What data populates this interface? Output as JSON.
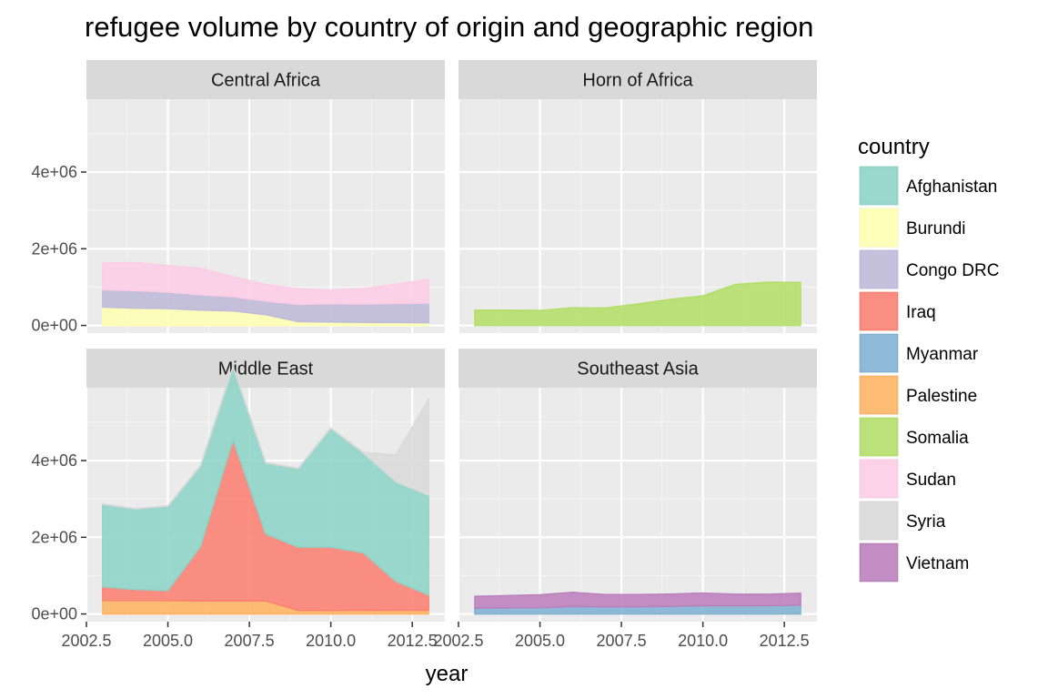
{
  "chart_data": {
    "type": "area",
    "title": "refugee volume by country of origin and geographic region",
    "xlabel": "year",
    "ylabel": "",
    "xlim": [
      2002.5,
      2013.5
    ],
    "ylim": [
      -200000,
      5900000
    ],
    "x_ticks": [
      {
        "value": 2002.5,
        "label": "2002.5"
      },
      {
        "value": 2005.0,
        "label": "2005.0"
      },
      {
        "value": 2007.5,
        "label": "2007.5"
      },
      {
        "value": 2010.0,
        "label": "2010.0"
      },
      {
        "value": 2012.5,
        "label": "2012.5"
      }
    ],
    "y_ticks": [
      {
        "value": 0,
        "label": "0e+00"
      },
      {
        "value": 2000000,
        "label": "2e+06"
      },
      {
        "value": 4000000,
        "label": "4e+06"
      }
    ],
    "legend": {
      "title": "country",
      "position": "right"
    },
    "countries": [
      {
        "name": "Afghanistan",
        "color": "#8dd3c7"
      },
      {
        "name": "Burundi",
        "color": "#ffffb3"
      },
      {
        "name": "Congo DRC",
        "color": "#bebada"
      },
      {
        "name": "Iraq",
        "color": "#fb8072"
      },
      {
        "name": "Myanmar",
        "color": "#80b1d3"
      },
      {
        "name": "Palestine",
        "color": "#fdb462"
      },
      {
        "name": "Somalia",
        "color": "#b3de69"
      },
      {
        "name": "Sudan",
        "color": "#fccde5"
      },
      {
        "name": "Syria",
        "color": "#d9d9d9"
      },
      {
        "name": "Vietnam",
        "color": "#bc80bd"
      }
    ],
    "years": [
      2003,
      2004,
      2005,
      2006,
      2007,
      2008,
      2009,
      2010,
      2011,
      2012,
      2013
    ],
    "panels": [
      {
        "name": "Central Africa",
        "series": [
          {
            "country": "Burundi",
            "values": [
              480000,
              450000,
              440000,
              400000,
              380000,
              280000,
              100000,
              90000,
              80000,
              75000,
              70000
            ]
          },
          {
            "country": "Congo DRC",
            "values": [
              450000,
              460000,
              430000,
              400000,
              370000,
              360000,
              450000,
              480000,
              480000,
              500000,
              510000
            ]
          },
          {
            "country": "Sudan",
            "values": [
              700000,
              730000,
              690000,
              690000,
              520000,
              430000,
              400000,
              350000,
              400000,
              500000,
              620000
            ]
          }
        ]
      },
      {
        "name": "Horn of Africa",
        "series": [
          {
            "country": "Somalia",
            "values": [
              400000,
              400000,
              390000,
              460000,
              455000,
              560000,
              680000,
              770000,
              1070000,
              1130000,
              1120000
            ]
          }
        ]
      },
      {
        "name": "Middle East",
        "series": [
          {
            "country": "Palestine",
            "values": [
              350000,
              350000,
              350000,
              340000,
              340000,
              340000,
              95000,
              93000,
              95000,
              96000,
              97000
            ]
          },
          {
            "country": "Iraq",
            "values": [
              360000,
              290000,
              260000,
              1420000,
              4200000,
              1750000,
              1650000,
              1650000,
              1500000,
              750000,
              400000
            ]
          },
          {
            "country": "Afghanistan",
            "values": [
              2150000,
              2100000,
              2200000,
              2100000,
              1900000,
              1850000,
              2050000,
              3100000,
              2600000,
              2600000,
              2600000
            ]
          },
          {
            "country": "Syria",
            "values": [
              10000,
              10000,
              10000,
              10000,
              10000,
              10000,
              10000,
              10000,
              20000,
              700000,
              2500000
            ]
          }
        ]
      },
      {
        "name": "Southeast Asia",
        "series": [
          {
            "country": "Myanmar",
            "values": [
              150000,
              160000,
              160000,
              195000,
              185000,
              185000,
              200000,
              215000,
              215000,
              215000,
              230000
            ]
          },
          {
            "country": "Vietnam",
            "values": [
              310000,
              320000,
              340000,
              370000,
              320000,
              320000,
              320000,
              330000,
              300000,
              300000,
              310000
            ]
          }
        ]
      }
    ]
  }
}
